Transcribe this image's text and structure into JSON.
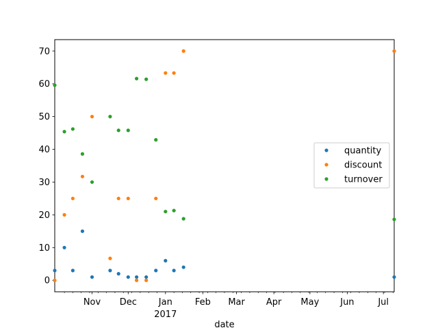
{
  "chart_data": {
    "type": "scatter",
    "xlabel": "date",
    "ylabel": "",
    "ylim": [
      -3.5,
      73.5
    ],
    "xlim": [
      "2016-10-01",
      "2017-07-10"
    ],
    "y_ticks": [
      0,
      10,
      20,
      30,
      40,
      50,
      60,
      70
    ],
    "x_major_ticks": [
      {
        "date": "2016-11-01",
        "label": "Nov"
      },
      {
        "date": "2016-12-01",
        "label": "Dec"
      },
      {
        "date": "2017-01-01",
        "label": "Jan",
        "sublabel": "2017"
      },
      {
        "date": "2017-02-01",
        "label": "Feb"
      },
      {
        "date": "2017-03-01",
        "label": "Mar"
      },
      {
        "date": "2017-04-01",
        "label": "Apr"
      },
      {
        "date": "2017-05-01",
        "label": "May"
      },
      {
        "date": "2017-06-01",
        "label": "Jun"
      },
      {
        "date": "2017-07-01",
        "label": "Jul"
      }
    ],
    "x_minor_ticks": [
      "2016-10-09",
      "2016-10-16",
      "2016-10-23",
      "2016-10-30",
      "2016-11-06",
      "2016-11-13",
      "2016-11-20",
      "2016-11-27",
      "2016-12-04",
      "2016-12-11",
      "2016-12-18",
      "2016-12-25",
      "2017-01-08",
      "2017-01-15",
      "2017-01-22",
      "2017-01-29",
      "2017-02-05",
      "2017-02-12",
      "2017-02-19",
      "2017-02-26",
      "2017-03-05",
      "2017-03-12",
      "2017-03-19",
      "2017-03-26",
      "2017-04-02",
      "2017-04-09",
      "2017-04-16",
      "2017-04-23",
      "2017-04-30",
      "2017-05-07",
      "2017-05-14",
      "2017-05-21",
      "2017-05-28",
      "2017-06-04",
      "2017-06-11",
      "2017-06-18",
      "2017-06-25",
      "2017-07-02",
      "2017-07-09"
    ],
    "grid": false,
    "legend_position": "center-right",
    "x": [
      "2016-10-01",
      "2016-10-09",
      "2016-10-16",
      "2016-10-24",
      "2016-11-01",
      "2016-11-16",
      "2016-11-23",
      "2016-12-01",
      "2016-12-08",
      "2016-12-16",
      "2016-12-24",
      "2017-01-01",
      "2017-01-08",
      "2017-01-16",
      "2017-07-10"
    ],
    "series": [
      {
        "name": "quantity",
        "color": "#1f77b4",
        "values": [
          3,
          10,
          3,
          15,
          1,
          3,
          2,
          1,
          1,
          1,
          3,
          6,
          3,
          4,
          1
        ]
      },
      {
        "name": "discount",
        "color": "#ff7f0e",
        "values": [
          0,
          20,
          25,
          31.7,
          50,
          6.7,
          25,
          25,
          0,
          0,
          25,
          63.3,
          63.3,
          70,
          70
        ]
      },
      {
        "name": "turnover",
        "color": "#2ca02c",
        "values": [
          59.6,
          45.4,
          46.2,
          38.6,
          30,
          50,
          45.8,
          45.8,
          61.6,
          61.4,
          42.9,
          21,
          21.3,
          18.8,
          18.6
        ]
      }
    ]
  }
}
